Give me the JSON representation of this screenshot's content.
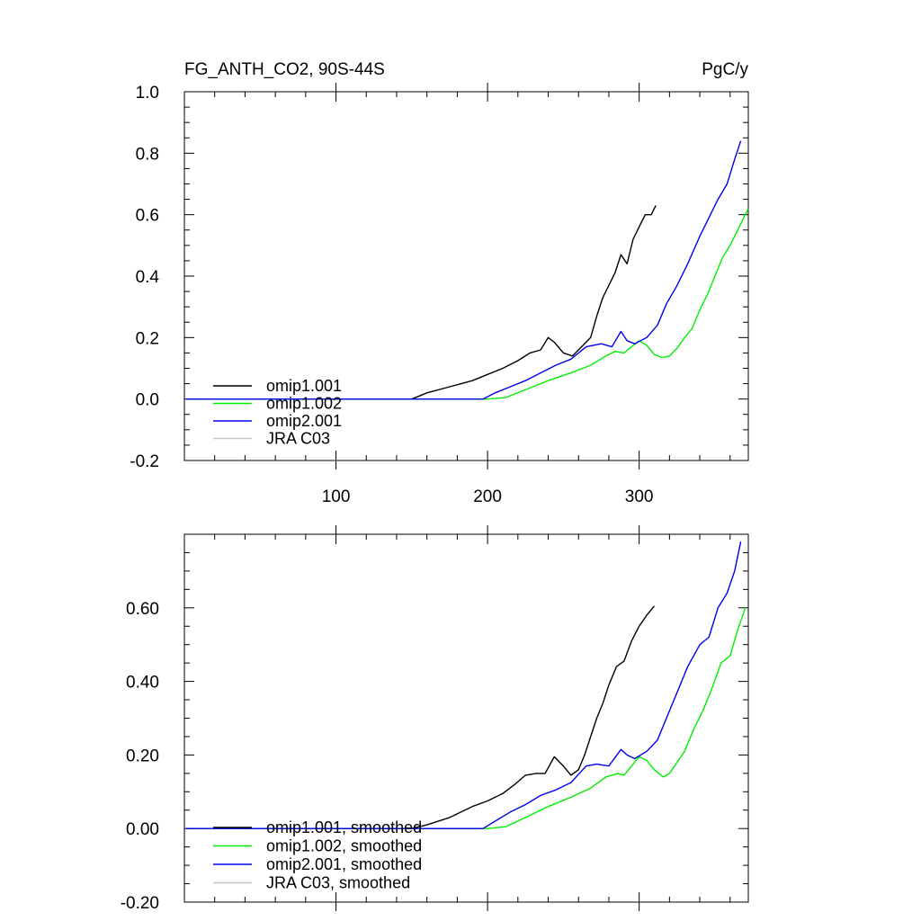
{
  "chart_data": [
    {
      "type": "line",
      "title": "FG_ANTH_CO2, 90S-44S",
      "units": "PgC/y",
      "xlim": [
        0,
        372
      ],
      "ylim": [
        -0.2,
        1.0
      ],
      "xticks": [
        100,
        200,
        300
      ],
      "xtick_labels": [
        "100",
        "200",
        "300"
      ],
      "yticks": [
        -0.2,
        0.0,
        0.2,
        0.4,
        0.6,
        0.8,
        1.0
      ],
      "ytick_labels": [
        "-0.2",
        "0.0",
        "0.2",
        "0.4",
        "0.6",
        "0.8",
        "1.0"
      ],
      "grid": false,
      "legend_position": "bottom-left",
      "series": [
        {
          "name": "omip1.001",
          "color": "#000000",
          "x": [
            1,
            150,
            160,
            175,
            190,
            200,
            210,
            220,
            228,
            235,
            240,
            244,
            250,
            256,
            262,
            268,
            272,
            276,
            280,
            284,
            288,
            292,
            296,
            300,
            304,
            308,
            311
          ],
          "y": [
            0,
            0,
            0.02,
            0.04,
            0.06,
            0.08,
            0.1,
            0.125,
            0.15,
            0.16,
            0.2,
            0.185,
            0.15,
            0.14,
            0.17,
            0.2,
            0.27,
            0.33,
            0.37,
            0.41,
            0.47,
            0.44,
            0.52,
            0.56,
            0.6,
            0.6,
            0.63
          ]
        },
        {
          "name": "omip1.002",
          "color": "#00ee00",
          "x": [
            1,
            200,
            212,
            225,
            240,
            255,
            268,
            278,
            284,
            290,
            295,
            300,
            305,
            310,
            315,
            320,
            325,
            330,
            335,
            340,
            345,
            350,
            355,
            360,
            365,
            370,
            372
          ],
          "y": [
            0,
            0,
            0.005,
            0.03,
            0.06,
            0.085,
            0.11,
            0.14,
            0.155,
            0.15,
            0.17,
            0.19,
            0.175,
            0.145,
            0.135,
            0.14,
            0.165,
            0.2,
            0.23,
            0.29,
            0.34,
            0.4,
            0.46,
            0.5,
            0.55,
            0.6,
            0.62
          ]
        },
        {
          "name": "omip2.001",
          "color": "#0000ee",
          "x": [
            1,
            197,
            205,
            215,
            225,
            235,
            245,
            255,
            265,
            275,
            282,
            288,
            292,
            297,
            305,
            312,
            318,
            325,
            332,
            340,
            346,
            352,
            358,
            363,
            367
          ],
          "y": [
            0,
            0,
            0.02,
            0.04,
            0.06,
            0.085,
            0.11,
            0.13,
            0.17,
            0.18,
            0.17,
            0.22,
            0.19,
            0.18,
            0.2,
            0.24,
            0.31,
            0.37,
            0.44,
            0.53,
            0.59,
            0.65,
            0.7,
            0.78,
            0.84
          ]
        },
        {
          "name": "JRA C03",
          "color": "#c8c8c8",
          "x": [],
          "y": []
        }
      ]
    },
    {
      "type": "line",
      "title": "",
      "xlim": [
        0,
        372
      ],
      "ylim": [
        -0.2,
        0.8
      ],
      "xticks": [
        100,
        200,
        300
      ],
      "xtick_labels": [],
      "yticks": [
        -0.2,
        0.0,
        0.2,
        0.4,
        0.6
      ],
      "ytick_labels": [
        "-0.20",
        "0.00",
        "0.20",
        "0.40",
        "0.60"
      ],
      "grid": false,
      "legend_position": "bottom-left",
      "series": [
        {
          "name": "omip1.001, smoothed",
          "color": "#000000",
          "x": [
            1,
            150,
            160,
            175,
            190,
            200,
            210,
            218,
            225,
            232,
            238,
            244,
            250,
            255,
            260,
            264,
            268,
            272,
            276,
            280,
            285,
            290,
            295,
            300,
            305,
            310
          ],
          "y": [
            0,
            0,
            0.01,
            0.03,
            0.06,
            0.075,
            0.095,
            0.12,
            0.145,
            0.15,
            0.15,
            0.195,
            0.17,
            0.145,
            0.16,
            0.2,
            0.25,
            0.3,
            0.34,
            0.39,
            0.44,
            0.455,
            0.51,
            0.55,
            0.58,
            0.605
          ]
        },
        {
          "name": "omip1.002, smoothed",
          "color": "#00ee00",
          "x": [
            1,
            200,
            212,
            225,
            240,
            255,
            268,
            278,
            286,
            290,
            295,
            300,
            305,
            310,
            316,
            320,
            325,
            330,
            336,
            342,
            348,
            354,
            360,
            365,
            370
          ],
          "y": [
            0,
            0,
            0.005,
            0.03,
            0.06,
            0.085,
            0.11,
            0.14,
            0.15,
            0.145,
            0.17,
            0.195,
            0.185,
            0.16,
            0.14,
            0.15,
            0.18,
            0.21,
            0.27,
            0.32,
            0.38,
            0.45,
            0.47,
            0.54,
            0.6
          ]
        },
        {
          "name": "omip2.001, smoothed",
          "color": "#0000ee",
          "x": [
            1,
            197,
            205,
            215,
            225,
            235,
            245,
            255,
            265,
            272,
            280,
            288,
            292,
            297,
            305,
            312,
            318,
            325,
            332,
            340,
            346,
            352,
            358,
            363,
            367
          ],
          "y": [
            0,
            0,
            0.02,
            0.045,
            0.065,
            0.09,
            0.105,
            0.125,
            0.17,
            0.175,
            0.17,
            0.215,
            0.2,
            0.19,
            0.21,
            0.24,
            0.3,
            0.37,
            0.44,
            0.5,
            0.52,
            0.6,
            0.64,
            0.7,
            0.78
          ]
        },
        {
          "name": "JRA C03, smoothed",
          "color": "#c8c8c8",
          "x": [],
          "y": []
        }
      ]
    }
  ]
}
